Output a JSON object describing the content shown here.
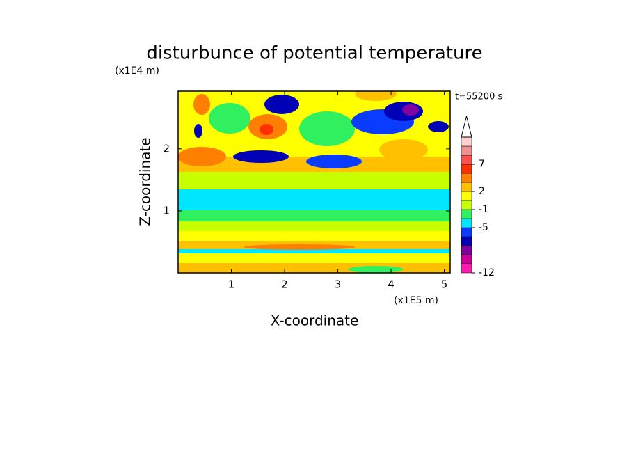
{
  "chart_data": {
    "type": "contour",
    "title": "disturbunce of potential temperature",
    "y_unit": "(x1E4 m)",
    "x_unit": "(x1E5 m)",
    "x_label": "X-coordinate",
    "y_label": "Z-coordinate",
    "annotation": "t=55200 s",
    "xlim": [
      0,
      5.11
    ],
    "xticks": [
      1,
      2,
      3,
      4,
      5
    ],
    "ylim": [
      0,
      2.93
    ],
    "yticks": [
      1,
      2
    ],
    "colorbar": {
      "colors": [
        "#ff1ab3",
        "#cc0099",
        "#8000a0",
        "#0000b4",
        "#0a3cff",
        "#00e6ff",
        "#30f060",
        "#c8ff00",
        "#ffff00",
        "#ffc000",
        "#ff8000",
        "#ff3000",
        "#ff5050",
        "#f09090",
        "#ffd0d0"
      ],
      "levels": [
        -12,
        null,
        null,
        null,
        null,
        -5,
        null,
        -1,
        null,
        2,
        null,
        null,
        7,
        null,
        null,
        null
      ]
    }
  }
}
